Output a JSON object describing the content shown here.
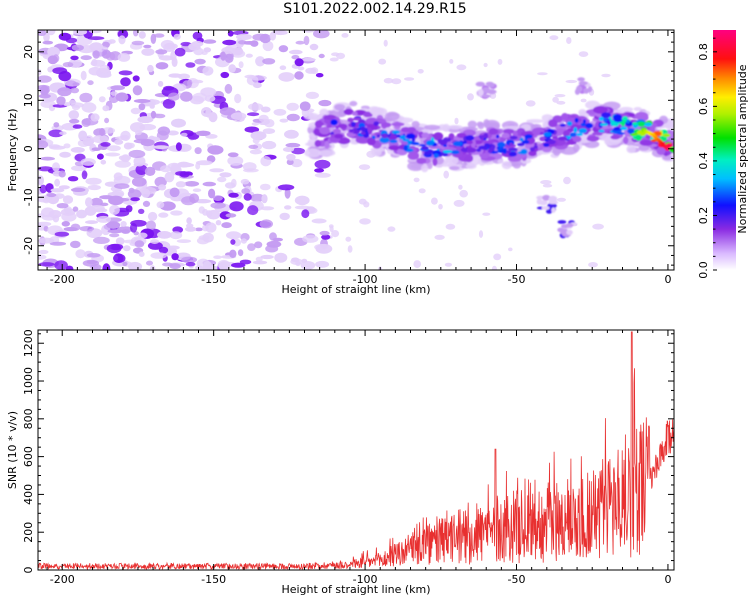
{
  "title": "S101.2022.002.14.29.R15",
  "colors": {
    "snr_line": "#e83030",
    "blob_light": "#e3cffa",
    "blob_mid": "#c49bf2",
    "blob_dark": "#7a14f0"
  },
  "chart_data": [
    {
      "type": "heatmap",
      "title": "S101.2022.002.14.29.R15",
      "xlabel": "Height of straight line (km)",
      "ylabel": "Frequency (Hz)",
      "xlim": [
        -208,
        2
      ],
      "ylim": [
        -25,
        24.5
      ],
      "xticks": [
        -200,
        -150,
        -100,
        -50,
        0
      ],
      "yticks": [
        -20,
        -10,
        0,
        10,
        20
      ],
      "colorbar": {
        "label": "Normalized spectral amplitude",
        "range": [
          0.0,
          0.88
        ],
        "ticks": [
          0.0,
          0.2,
          0.4,
          0.6,
          0.8
        ],
        "colormap": "rainbow (white → violet → blue → cyan → green → yellow → red → magenta)"
      },
      "noise_region": {
        "x_range": [
          -208,
          -112
        ],
        "y_range": [
          -25,
          24.5
        ],
        "amplitude": "low (0.0–0.1)"
      },
      "signal_track": [
        {
          "x": -115,
          "y": 3.0,
          "amplitude": 0.2
        },
        {
          "x": -105,
          "y": 5.0,
          "amplitude": 0.25
        },
        {
          "x": -95,
          "y": 3.5,
          "amplitude": 0.3
        },
        {
          "x": -88,
          "y": 2.0,
          "amplitude": 0.3
        },
        {
          "x": -80,
          "y": 0.0,
          "amplitude": 0.35
        },
        {
          "x": -70,
          "y": 0.5,
          "amplitude": 0.3
        },
        {
          "x": -60,
          "y": 1.0,
          "amplitude": 0.25
        },
        {
          "x": -50,
          "y": 0.5,
          "amplitude": 0.3
        },
        {
          "x": -40,
          "y": 2.5,
          "amplitude": 0.3
        },
        {
          "x": -30,
          "y": 4.5,
          "amplitude": 0.3
        },
        {
          "x": -20,
          "y": 5.5,
          "amplitude": 0.35
        },
        {
          "x": -10,
          "y": 4.0,
          "amplitude": 0.5
        },
        {
          "x": -5,
          "y": 3.5,
          "amplitude": 0.75
        },
        {
          "x": 0,
          "y": 1.5,
          "amplitude": 0.85
        }
      ],
      "secondary_features": [
        {
          "x": -40,
          "y": -11.5,
          "amplitude": 0.2
        },
        {
          "x": -33,
          "y": -16.5,
          "amplitude": 0.2
        },
        {
          "x": -60,
          "y": 12.0,
          "amplitude": 0.1
        },
        {
          "x": -28,
          "y": 13.0,
          "amplitude": 0.1
        }
      ]
    },
    {
      "type": "line",
      "xlabel": "Height of straight line (km)",
      "ylabel": "SNR (10 * v/v)",
      "xlim": [
        -208,
        2
      ],
      "ylim": [
        0,
        1270
      ],
      "xticks": [
        -200,
        -150,
        -100,
        -50,
        0
      ],
      "yticks": [
        0,
        200,
        400,
        600,
        800,
        1000,
        1200
      ],
      "series": [
        {
          "envelope_x": [
            -208,
            -180,
            -150,
            -120,
            -105,
            -95,
            -90,
            -80,
            -70,
            -60,
            -55,
            -50,
            -45,
            -40,
            -35,
            -30,
            -25,
            -20,
            -15,
            -12,
            -10,
            -5,
            -2,
            0,
            2
          ],
          "envelope_mean": [
            20,
            20,
            20,
            20,
            30,
            50,
            80,
            130,
            170,
            200,
            220,
            230,
            240,
            250,
            260,
            270,
            300,
            340,
            380,
            420,
            420,
            500,
            600,
            700,
            720
          ],
          "envelope_peak": [
            45,
            40,
            40,
            40,
            80,
            130,
            220,
            300,
            330,
            450,
            650,
            560,
            530,
            620,
            720,
            720,
            690,
            900,
            1000,
            1250,
            950,
            700,
            780,
            820,
            780
          ]
        }
      ]
    }
  ]
}
